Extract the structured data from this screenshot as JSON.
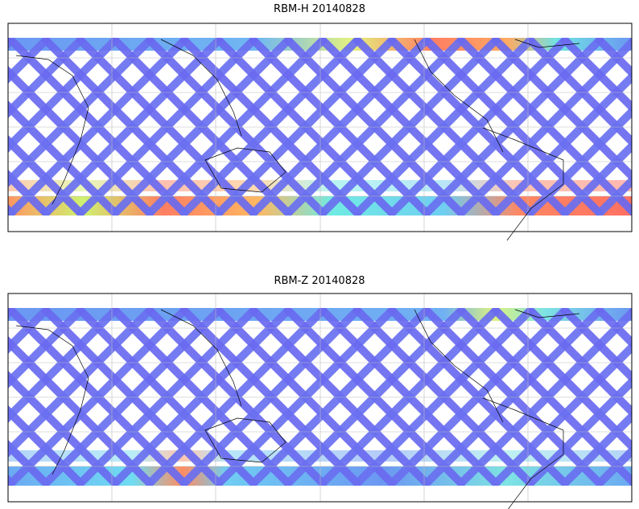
{
  "panels": [
    {
      "title": "RBM-H 20140828"
    },
    {
      "title": "RBM-Z 20140828"
    }
  ]
}
